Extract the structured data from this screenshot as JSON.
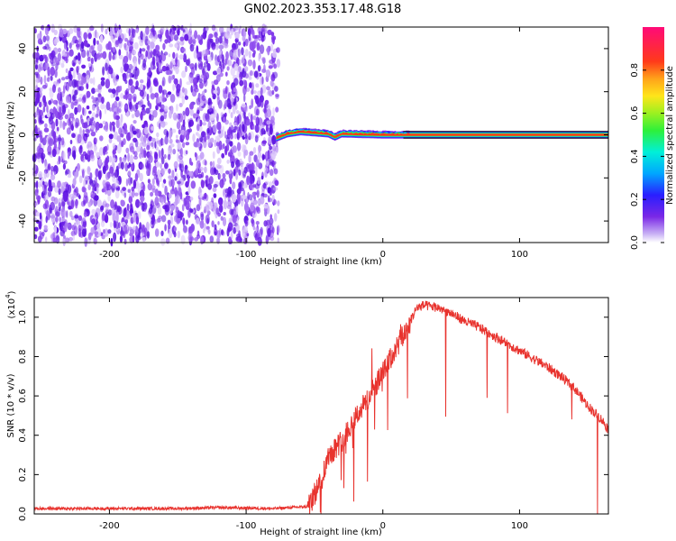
{
  "title": "GN02.2023.353.17.48.G18",
  "chart_data": [
    {
      "type": "heatmap",
      "xlabel": "Height of straight line (km)",
      "ylabel": "Frequency (Hz)",
      "xlim": [
        -255,
        165
      ],
      "ylim": [
        -50,
        50
      ],
      "xticks": [
        -200,
        -100,
        0,
        100
      ],
      "yticks": [
        -40,
        -20,
        0,
        20,
        40
      ],
      "colorbar": {
        "label": "Normalized spectral amplitude",
        "ticks": [
          0.0,
          0.2,
          0.4,
          0.6,
          0.8
        ],
        "range": [
          0,
          1
        ]
      },
      "noise_region_x": [
        -255,
        -75
      ],
      "tone": {
        "frequency": 0,
        "x_start": -78,
        "x_end": 165,
        "path": [
          [
            -78,
            -1.5
          ],
          [
            -70,
            0.5
          ],
          [
            -60,
            1.5
          ],
          [
            -50,
            1.0
          ],
          [
            -40,
            0.5
          ],
          [
            -35,
            -1.0
          ],
          [
            -30,
            0.5
          ],
          [
            -20,
            0.3
          ],
          [
            0,
            0.0
          ],
          [
            20,
            0.0
          ],
          [
            165,
            0.0
          ]
        ]
      }
    },
    {
      "type": "line",
      "xlabel": "Height of straight line (km)",
      "ylabel": "SNR (10 * v/v)",
      "yscale_note": "(x10",
      "yscale_exp": "4",
      "yscale_tail": ")",
      "xlim": [
        -255,
        165
      ],
      "ylim": [
        0,
        1.1
      ],
      "xticks": [
        -200,
        -100,
        0,
        100
      ],
      "yticks": [
        0.0,
        0.2,
        0.4,
        0.6,
        0.8,
        1.0
      ],
      "color": "#e8332e",
      "x": [
        -255,
        -150,
        -120,
        -80,
        -55,
        -45,
        -40,
        -30,
        -20,
        -10,
        0,
        10,
        20,
        25,
        30,
        40,
        50,
        60,
        70,
        80,
        90,
        100,
        110,
        120,
        130,
        140,
        150,
        160,
        165
      ],
      "y": [
        0.02,
        0.02,
        0.025,
        0.02,
        0.03,
        0.18,
        0.3,
        0.38,
        0.5,
        0.6,
        0.72,
        0.85,
        0.98,
        1.05,
        1.06,
        1.05,
        1.02,
        0.98,
        0.95,
        0.91,
        0.87,
        0.83,
        0.79,
        0.75,
        0.7,
        0.64,
        0.55,
        0.48,
        0.43
      ]
    }
  ]
}
